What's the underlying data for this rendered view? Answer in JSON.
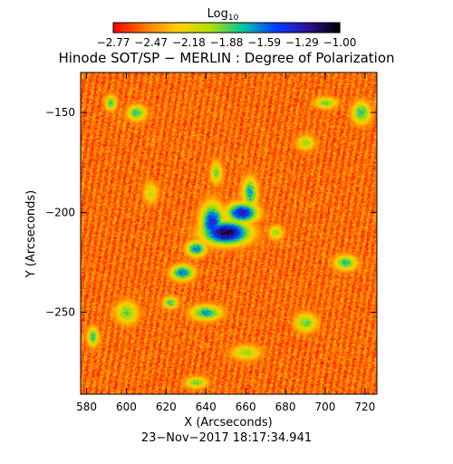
{
  "chart_data": {
    "type": "heatmap",
    "title": "Hinode SOT/SP − MERLIN : Degree of Polarization",
    "colorbar": {
      "label": "Log",
      "label_subscript": "10",
      "position": "top",
      "range": [
        -2.77,
        -1.0
      ],
      "tick_labels": [
        "−2.77",
        "−2.47",
        "−2.18",
        "−1.88",
        "−1.59",
        "−1.29",
        "−1.00"
      ],
      "colors": [
        "#ff0000",
        "#ff7f00",
        "#ffd000",
        "#b0e000",
        "#00c8a0",
        "#0040ff",
        "#3010a0",
        "#000000"
      ]
    },
    "xlabel": "X (Arcseconds)",
    "ylabel": "Y (Arcseconds)",
    "xlim": [
      577,
      726
    ],
    "ylim": [
      -291,
      -130
    ],
    "x_ticks": [
      580,
      600,
      620,
      640,
      660,
      680,
      700,
      720
    ],
    "x_tick_labels": [
      "580",
      "600",
      "620",
      "640",
      "660",
      "680",
      "700",
      "720"
    ],
    "y_ticks": [
      -150,
      -200,
      -250
    ],
    "y_tick_labels": [
      "−150",
      "−200",
      "−250"
    ],
    "features": [
      {
        "x": 650,
        "y": -210,
        "rx": 12,
        "ry": 6,
        "level": -1.1
      },
      {
        "x": 643,
        "y": -205,
        "rx": 6,
        "ry": 10,
        "level": -1.4
      },
      {
        "x": 658,
        "y": -200,
        "rx": 8,
        "ry": 5,
        "level": -1.3
      },
      {
        "x": 635,
        "y": -218,
        "rx": 5,
        "ry": 4,
        "level": -1.6
      },
      {
        "x": 662,
        "y": -190,
        "rx": 4,
        "ry": 8,
        "level": -1.7
      },
      {
        "x": 645,
        "y": -180,
        "rx": 3,
        "ry": 6,
        "level": -1.9
      },
      {
        "x": 628,
        "y": -230,
        "rx": 6,
        "ry": 4,
        "level": -1.6
      },
      {
        "x": 640,
        "y": -250,
        "rx": 8,
        "ry": 4,
        "level": -1.7
      },
      {
        "x": 622,
        "y": -245,
        "rx": 4,
        "ry": 3,
        "level": -1.8
      },
      {
        "x": 605,
        "y": -150,
        "rx": 5,
        "ry": 4,
        "level": -1.8
      },
      {
        "x": 592,
        "y": -145,
        "rx": 3,
        "ry": 4,
        "level": -1.8
      },
      {
        "x": 700,
        "y": -145,
        "rx": 6,
        "ry": 3,
        "level": -1.9
      },
      {
        "x": 718,
        "y": -150,
        "rx": 5,
        "ry": 6,
        "level": -1.8
      },
      {
        "x": 690,
        "y": -165,
        "rx": 5,
        "ry": 4,
        "level": -2.0
      },
      {
        "x": 710,
        "y": -225,
        "rx": 6,
        "ry": 4,
        "level": -1.8
      },
      {
        "x": 690,
        "y": -255,
        "rx": 6,
        "ry": 5,
        "level": -1.9
      },
      {
        "x": 600,
        "y": -250,
        "rx": 6,
        "ry": 6,
        "level": -1.9
      },
      {
        "x": 583,
        "y": -262,
        "rx": 3,
        "ry": 5,
        "level": -1.8
      },
      {
        "x": 660,
        "y": -270,
        "rx": 8,
        "ry": 4,
        "level": -2.0
      },
      {
        "x": 635,
        "y": -285,
        "rx": 6,
        "ry": 3,
        "level": -1.9
      },
      {
        "x": 612,
        "y": -190,
        "rx": 4,
        "ry": 6,
        "level": -2.1
      },
      {
        "x": 675,
        "y": -210,
        "rx": 4,
        "ry": 4,
        "level": -2.0
      }
    ],
    "date_label": "23−Nov−2017 18:17:34.941"
  }
}
